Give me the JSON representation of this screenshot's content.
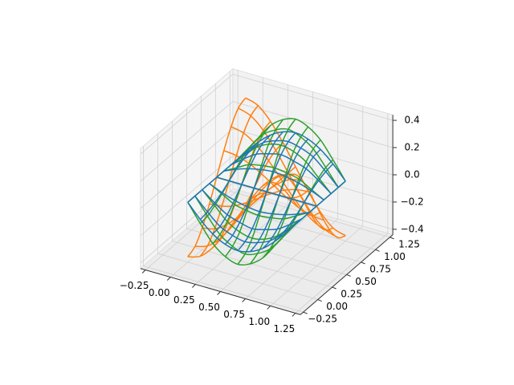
{
  "chart_data": {
    "type": "wireframe3d",
    "xlim": [
      -0.3,
      1.3
    ],
    "ylim": [
      -0.3,
      1.3
    ],
    "zlim": [
      -0.44,
      0.44
    ],
    "xticks": [
      {
        "value": -0.25,
        "label": "−0.25"
      },
      {
        "value": 0,
        "label": "0.00"
      },
      {
        "value": 0.25,
        "label": "0.25"
      },
      {
        "value": 0.5,
        "label": "0.50"
      },
      {
        "value": 0.75,
        "label": "0.75"
      },
      {
        "value": 1,
        "label": "1.00"
      },
      {
        "value": 1.25,
        "label": "1.25"
      }
    ],
    "yticks": [
      {
        "value": -0.25,
        "label": "−0.25"
      },
      {
        "value": 0,
        "label": "0.00"
      },
      {
        "value": 0.25,
        "label": "0.25"
      },
      {
        "value": 0.5,
        "label": "0.50"
      },
      {
        "value": 0.75,
        "label": "0.75"
      },
      {
        "value": 1,
        "label": "1.00"
      },
      {
        "value": 1.25,
        "label": "1.25"
      }
    ],
    "zticks": [
      {
        "value": -0.4,
        "label": "−0.4"
      },
      {
        "value": -0.2,
        "label": "−0.2"
      },
      {
        "value": 0,
        "label": "0.0"
      },
      {
        "value": 0.2,
        "label": "0.2"
      },
      {
        "value": 0.4,
        "label": "0.4"
      }
    ],
    "grid": true,
    "x": [
      0,
      0.125,
      0.25,
      0.375,
      0.5,
      0.625,
      0.75,
      0.875,
      1
    ],
    "y": [
      0,
      0.125,
      0.25,
      0.375,
      0.5,
      0.625,
      0.75,
      0.875,
      1
    ],
    "series": [
      {
        "color": "#ff7f0e",
        "z": [
          [
            -0.4,
            -0.37,
            -0.28,
            -0.15,
            0,
            0.15,
            0.28,
            0.37,
            0.4
          ],
          [
            -0.37,
            -0.34,
            -0.26,
            -0.14,
            0,
            0.14,
            0.26,
            0.34,
            0.37
          ],
          [
            -0.28,
            -0.26,
            -0.2,
            -0.11,
            0,
            0.11,
            0.2,
            0.26,
            0.28
          ],
          [
            -0.15,
            -0.14,
            -0.11,
            -0.06,
            0,
            0.06,
            0.11,
            0.14,
            0.15
          ],
          [
            0,
            0,
            0,
            0,
            0,
            0,
            0,
            0,
            0
          ],
          [
            0.15,
            0.14,
            0.11,
            0.06,
            0,
            -0.06,
            -0.11,
            -0.14,
            -0.15
          ],
          [
            0.28,
            0.26,
            0.2,
            0.11,
            0,
            -0.11,
            -0.2,
            -0.26,
            -0.28
          ],
          [
            0.37,
            0.34,
            0.26,
            0.14,
            0,
            -0.14,
            -0.26,
            -0.34,
            -0.37
          ],
          [
            0.4,
            0.37,
            0.28,
            0.15,
            0,
            -0.15,
            -0.28,
            -0.37,
            -0.4
          ]
        ]
      },
      {
        "color": "#2ca02c",
        "z": [
          [
            0,
            -0.13,
            -0.25,
            -0.32,
            -0.35,
            -0.32,
            -0.25,
            -0.13,
            0
          ],
          [
            0,
            -0.12,
            -0.23,
            -0.29,
            -0.32,
            -0.29,
            -0.23,
            -0.12,
            0
          ],
          [
            0,
            -0.09,
            -0.18,
            -0.23,
            -0.25,
            -0.23,
            -0.18,
            -0.09,
            0
          ],
          [
            0,
            -0.05,
            -0.1,
            -0.12,
            -0.13,
            -0.12,
            -0.1,
            -0.05,
            0
          ],
          [
            0,
            0,
            0,
            0,
            0,
            0,
            0,
            0,
            0
          ],
          [
            0,
            0.05,
            0.1,
            0.12,
            0.13,
            0.12,
            0.1,
            0.05,
            0
          ],
          [
            0,
            0.09,
            0.18,
            0.23,
            0.25,
            0.23,
            0.18,
            0.09,
            0
          ],
          [
            0,
            0.12,
            0.23,
            0.29,
            0.32,
            0.29,
            0.23,
            0.12,
            0
          ],
          [
            0,
            0.13,
            0.25,
            0.32,
            0.35,
            0.32,
            0.25,
            0.13,
            0
          ]
        ]
      },
      {
        "color": "#1f77b4",
        "z": [
          [
            0,
            -0.1,
            -0.18,
            -0.23,
            -0.25,
            -0.23,
            -0.18,
            -0.1,
            0
          ],
          [
            0,
            -0.09,
            -0.17,
            -0.21,
            -0.23,
            -0.21,
            -0.17,
            -0.09,
            0
          ],
          [
            0,
            -0.07,
            -0.13,
            -0.16,
            -0.18,
            -0.16,
            -0.13,
            -0.07,
            0
          ],
          [
            0,
            -0.04,
            -0.07,
            -0.09,
            -0.1,
            -0.09,
            -0.07,
            -0.04,
            0
          ],
          [
            0,
            0,
            0,
            0,
            0,
            0,
            0,
            0,
            0
          ],
          [
            0,
            0.04,
            0.07,
            0.09,
            0.1,
            0.09,
            0.07,
            0.04,
            0
          ],
          [
            0,
            0.07,
            0.13,
            0.16,
            0.18,
            0.16,
            0.13,
            0.07,
            0
          ],
          [
            0,
            0.09,
            0.17,
            0.21,
            0.23,
            0.21,
            0.17,
            0.09,
            0
          ],
          [
            0,
            0.1,
            0.18,
            0.23,
            0.25,
            0.23,
            0.18,
            0.1,
            0
          ]
        ]
      }
    ]
  }
}
